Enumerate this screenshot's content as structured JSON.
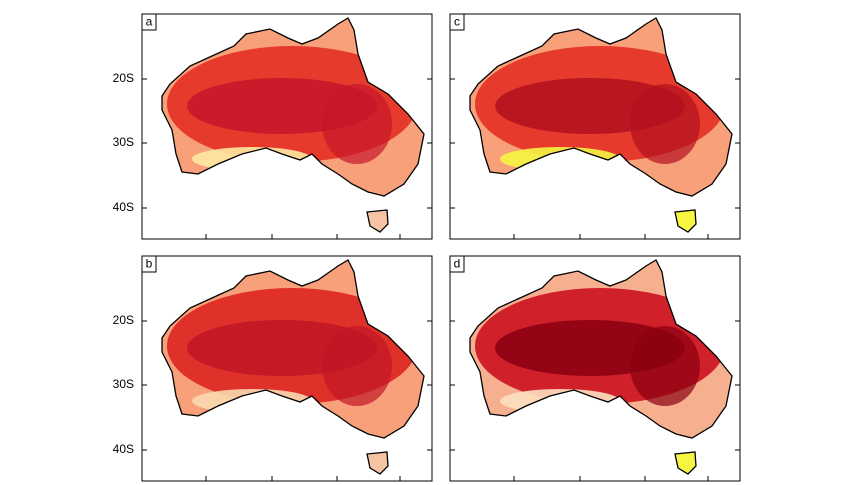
{
  "panels": [
    {
      "label": "a",
      "yticks": [
        "20S",
        "30S",
        "40S"
      ]
    },
    {
      "label": "c"
    },
    {
      "label": "b",
      "yticks": [
        "20S",
        "30S",
        "40S"
      ]
    },
    {
      "label": "d"
    }
  ]
}
